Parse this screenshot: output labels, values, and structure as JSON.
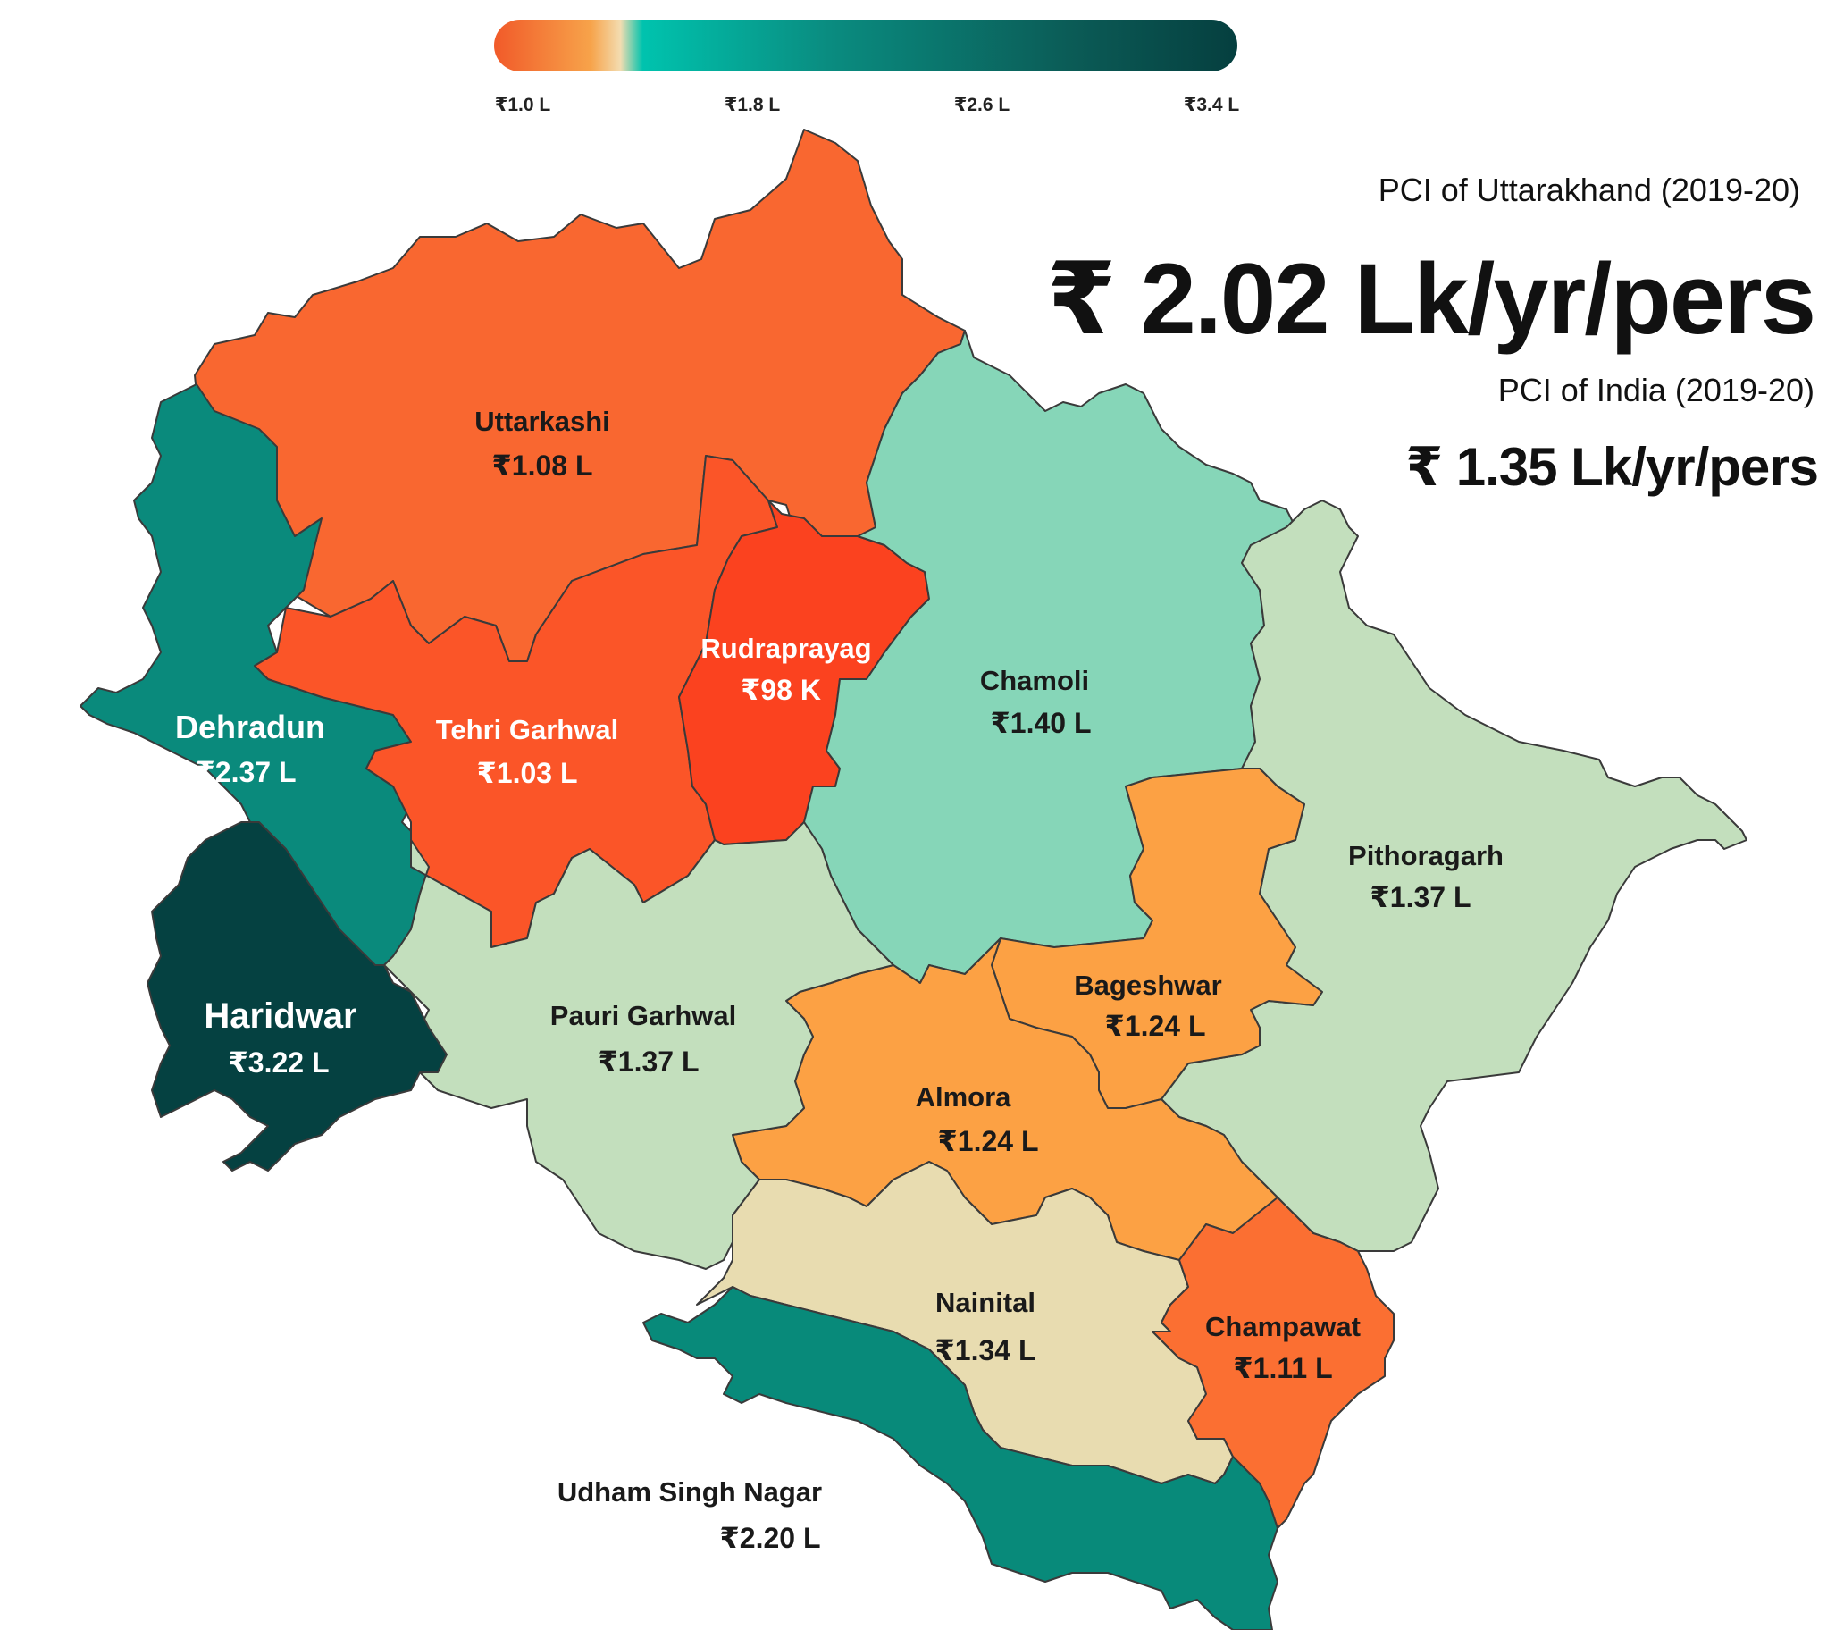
{
  "legend": {
    "ticks": [
      "₹1.0 L",
      "₹1.8 L",
      "₹2.6 L",
      "₹3.4 L"
    ],
    "colors": [
      "#f15a29",
      "#f7a34a",
      "#f3dcb0",
      "#00c3ae",
      "#0a8c80",
      "#0b5b56",
      "#053f3f"
    ]
  },
  "stats": {
    "state_caption": "PCI of Uttarakhand (2019-20)",
    "state_value": "₹ 2.02 Lk/yr/pers",
    "india_caption": "PCI of India (2019-20)",
    "india_value": "₹ 1.35 Lk/yr/pers"
  },
  "districts": [
    {
      "name": "Uttarkashi",
      "value": "₹1.08 L",
      "color": "#f96730",
      "label_color": "#1a1a1a"
    },
    {
      "name": "Dehradun",
      "value": "₹2.37 L",
      "color": "#0a8a7c",
      "label_color": "#ffffff"
    },
    {
      "name": "Tehri Garhwal",
      "value": "₹1.03 L",
      "color": "#fb5528",
      "label_color": "#ffffff"
    },
    {
      "name": "Rudraprayag",
      "value": "₹98 K",
      "color": "#fb421f",
      "label_color": "#ffffff"
    },
    {
      "name": "Chamoli",
      "value": "₹1.40 L",
      "color": "#86d6b8",
      "label_color": "#1a1a1a"
    },
    {
      "name": "Pithoragarh",
      "value": "₹1.37 L",
      "color": "#c3dfbd",
      "label_color": "#1a1a1a"
    },
    {
      "name": "Bageshwar",
      "value": "₹1.24 L",
      "color": "#fca144",
      "label_color": "#1a1a1a"
    },
    {
      "name": "Almora",
      "value": "₹1.24 L",
      "color": "#fca144",
      "label_color": "#1a1a1a"
    },
    {
      "name": "Pauri Garhwal",
      "value": "₹1.37 L",
      "color": "#c3dfbd",
      "label_color": "#1a1a1a"
    },
    {
      "name": "Haridwar",
      "value": "₹3.22 L",
      "color": "#054141",
      "label_color": "#ffffff"
    },
    {
      "name": "Nainital",
      "value": "₹1.34 L",
      "color": "#e8dcb0",
      "label_color": "#1a1a1a"
    },
    {
      "name": "Champawat",
      "value": "₹1.11 L",
      "color": "#fb6f32",
      "label_color": "#1a1a1a"
    },
    {
      "name": "Udham Singh Nagar",
      "value": "₹2.20 L",
      "color": "#088a7a",
      "label_color": "#1a1a1a"
    }
  ]
}
